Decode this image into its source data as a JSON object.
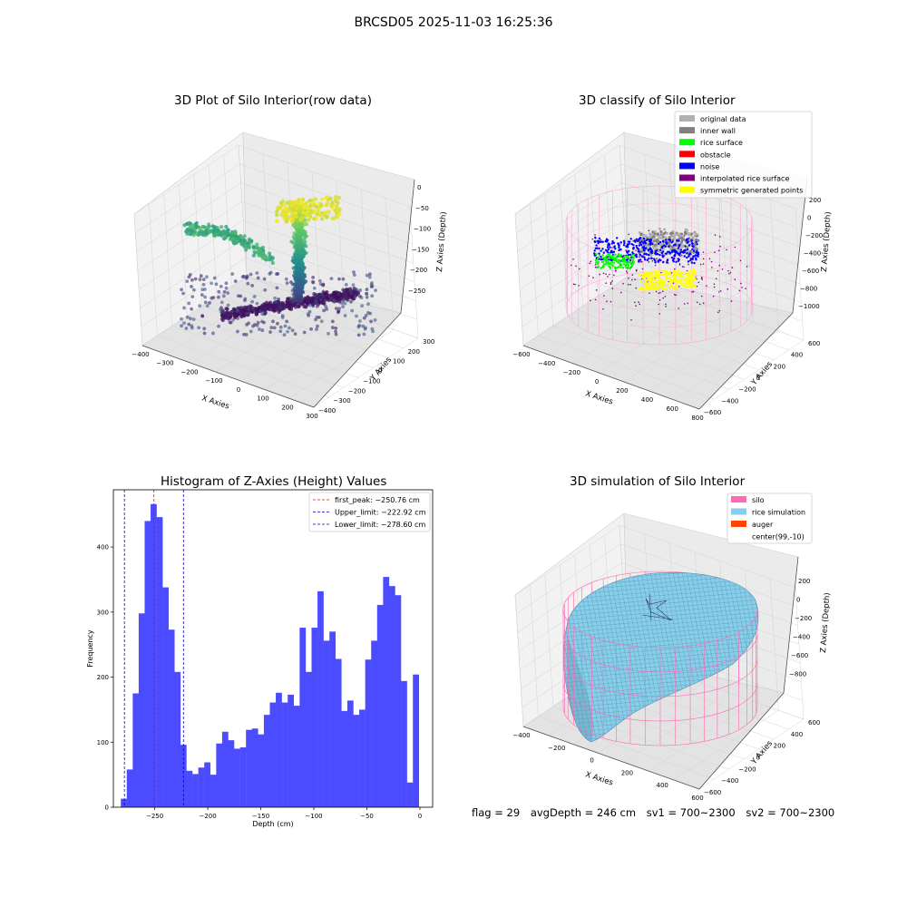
{
  "suptitle": "BRCSD05 2025-11-03 16:25:36",
  "footer": {
    "flag": "flag = 29",
    "avg_depth": "avgDepth = 246 cm",
    "sv1": "sv1 = 700~2300",
    "sv2": "sv2 = 700~2300"
  },
  "colors": {
    "histogram_bar": "#4b4bff",
    "first_peak": "#ff0000",
    "limits": "#0000cc",
    "silo": "#ff69b4",
    "rice_simulation": "#87ceeb",
    "auger": "#ff4500"
  },
  "chart_data": [
    {
      "type": "scatter",
      "subtype": "3d-scatter",
      "title": "3D Plot of Silo Interior(row data)",
      "xlabel": "X Axies",
      "ylabel": "Y Axies",
      "zlabel": "Z Axies (Depth)",
      "x_ticks": [
        "−400",
        "−300",
        "−200",
        "−100",
        "0",
        "100",
        "200",
        "300"
      ],
      "y_ticks": [
        "−400",
        "−300",
        "−200",
        "−100",
        "0",
        "100",
        "200",
        "300"
      ],
      "z_ticks": [
        "0",
        "−50",
        "−100",
        "−150",
        "−200",
        "−250"
      ],
      "colormap": "viridis"
    },
    {
      "type": "scatter",
      "subtype": "3d-classified",
      "title": "3D classify of Silo Interior",
      "xlabel": "X Axies",
      "ylabel": "Y Axies",
      "zlabel": "Z Axies (Depth)",
      "x_ticks": [
        "−600",
        "−400",
        "−200",
        "0",
        "200",
        "400",
        "600",
        "800"
      ],
      "y_ticks": [
        "−600",
        "−400",
        "−200",
        "0",
        "200",
        "400",
        "600"
      ],
      "z_ticks": [
        "200",
        "0",
        "−200",
        "−400",
        "−600",
        "−800",
        "−1000"
      ],
      "legend_position": "top-right",
      "legend": [
        {
          "label": "original data",
          "color": "#b0b0b0"
        },
        {
          "label": "inner wall",
          "color": "#808080"
        },
        {
          "label": "rice surface",
          "color": "#00ff00"
        },
        {
          "label": "obstacle",
          "color": "#ff0000"
        },
        {
          "label": "noise",
          "color": "#0000ff"
        },
        {
          "label": "interpolated rice surface",
          "color": "#800080"
        },
        {
          "label": "symmetric generated points",
          "color": "#ffff00"
        }
      ]
    },
    {
      "type": "bar",
      "subtype": "histogram",
      "title": "Histogram of Z-Axies (Height) Values",
      "xlabel": "Depth (cm)",
      "ylabel": "Frequency",
      "xlim": [
        -289,
        12
      ],
      "ylim": [
        0,
        488
      ],
      "x_ticks": [
        -250,
        -200,
        -150,
        -100,
        -50,
        0
      ],
      "x_tick_labels": [
        "−250",
        "−200",
        "−150",
        "−100",
        "−50",
        "0"
      ],
      "y_ticks": [
        0,
        100,
        200,
        300,
        400
      ],
      "bin_start": -282,
      "bin_width": 5.62,
      "values": [
        13,
        58,
        175,
        298,
        440,
        466,
        446,
        338,
        273,
        208,
        96,
        56,
        51,
        61,
        69,
        50,
        98,
        116,
        103,
        90,
        92,
        119,
        121,
        112,
        142,
        161,
        176,
        161,
        173,
        156,
        276,
        208,
        276,
        332,
        256,
        270,
        228,
        148,
        164,
        142,
        150,
        227,
        256,
        311,
        354,
        340,
        326,
        194,
        38,
        204
      ],
      "lines": [
        {
          "label": "first_peak: −250.76 cm",
          "x": -250.76,
          "color": "#ff0000"
        },
        {
          "label": "Upper_limit: −222.92 cm",
          "x": -222.92,
          "color": "#0000cc"
        },
        {
          "label": "Lower_limit: −278.60 cm",
          "x": -278.6,
          "color": "#0000cc"
        }
      ],
      "legend_position": "top-right"
    },
    {
      "type": "area",
      "subtype": "3d-surface",
      "title": "3D simulation of Silo Interior",
      "xlabel": "X Axies",
      "ylabel": "Y Axies",
      "zlabel": "Z Axies (Depth)",
      "x_ticks": [
        "−400",
        "−200",
        "0",
        "200",
        "400",
        "600"
      ],
      "y_ticks": [
        "−600",
        "−400",
        "−200",
        "0",
        "200",
        "400",
        "600"
      ],
      "z_ticks": [
        "200",
        "0",
        "−200",
        "−400",
        "−600",
        "−800"
      ],
      "legend_position": "top-right",
      "legend": [
        {
          "label": "silo",
          "color": "#ff69b4"
        },
        {
          "label": "rice simulation",
          "color": "#87ceeb"
        },
        {
          "label": "auger",
          "color": "#ff4500"
        },
        {
          "label": "center(99,-10)",
          "color": ""
        }
      ]
    }
  ]
}
